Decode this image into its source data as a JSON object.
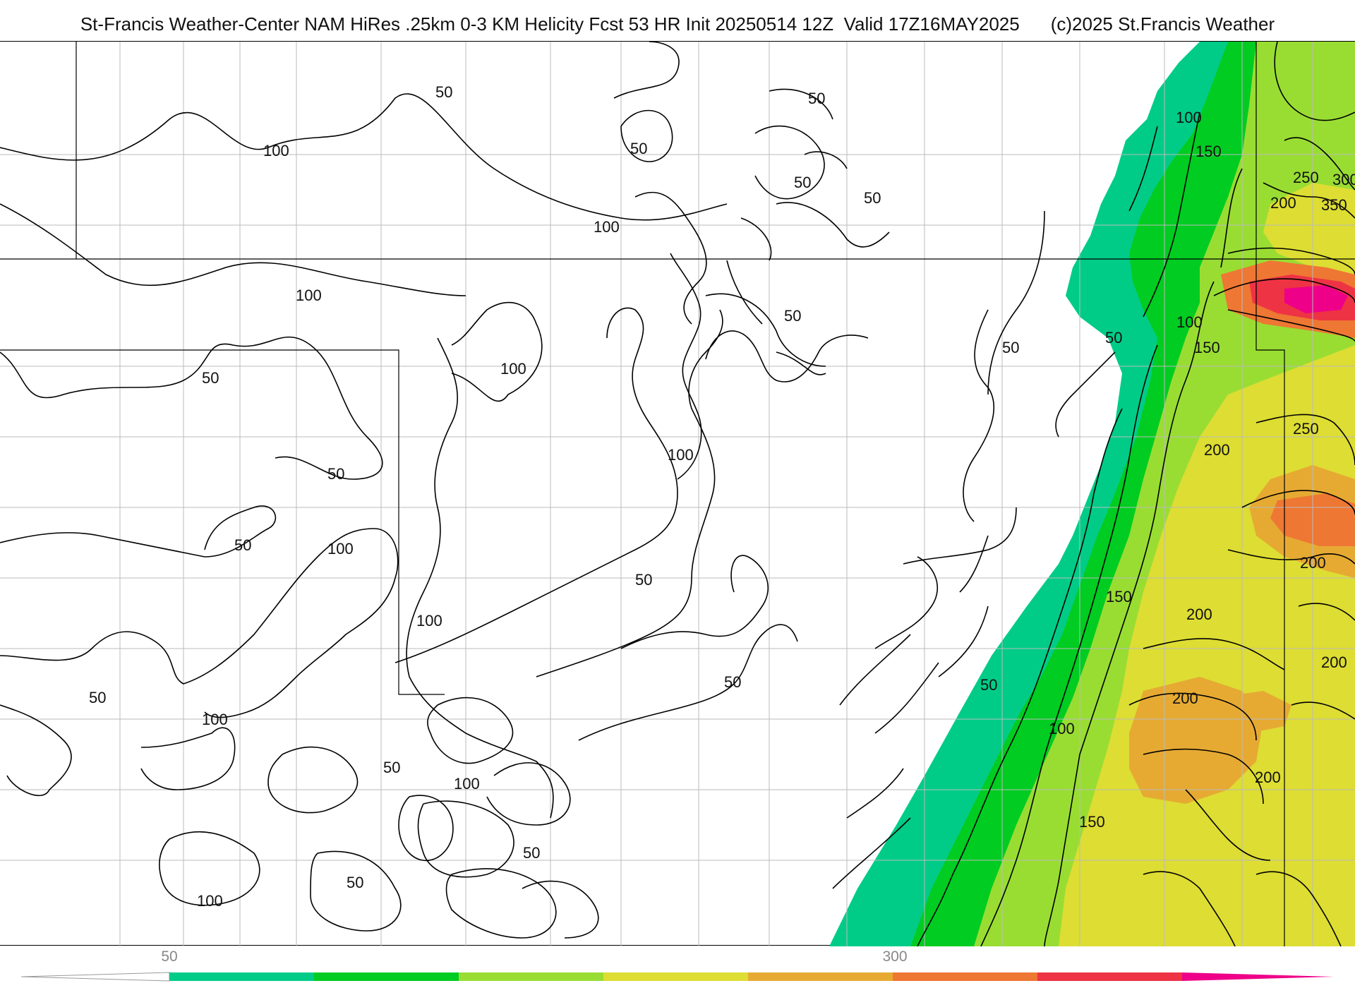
{
  "header": {
    "title": "St-Francis Weather-Center NAM HiRes .25km 0-3 KM Helicity Fcst 53 HR Init 20250514 12Z  Valid 17Z16MAY2025",
    "copyright": "(c)2025 St.Francis Weather"
  },
  "colorbar": {
    "tick_labels": [
      "50",
      "300"
    ],
    "colors": [
      "#00cc88",
      "#00cc22",
      "#99dd33",
      "#dddd33",
      "#e6aa33",
      "#ee7733",
      "#ee3344",
      "#ee0088"
    ]
  },
  "contour_labels": [
    {
      "text": "50",
      "value": 50
    },
    {
      "text": "100",
      "value": 100
    },
    {
      "text": "150",
      "value": 150
    },
    {
      "text": "200",
      "value": 200
    },
    {
      "text": "250",
      "value": 250
    },
    {
      "text": "300",
      "value": 300
    },
    {
      "text": "350",
      "value": 350
    }
  ]
}
